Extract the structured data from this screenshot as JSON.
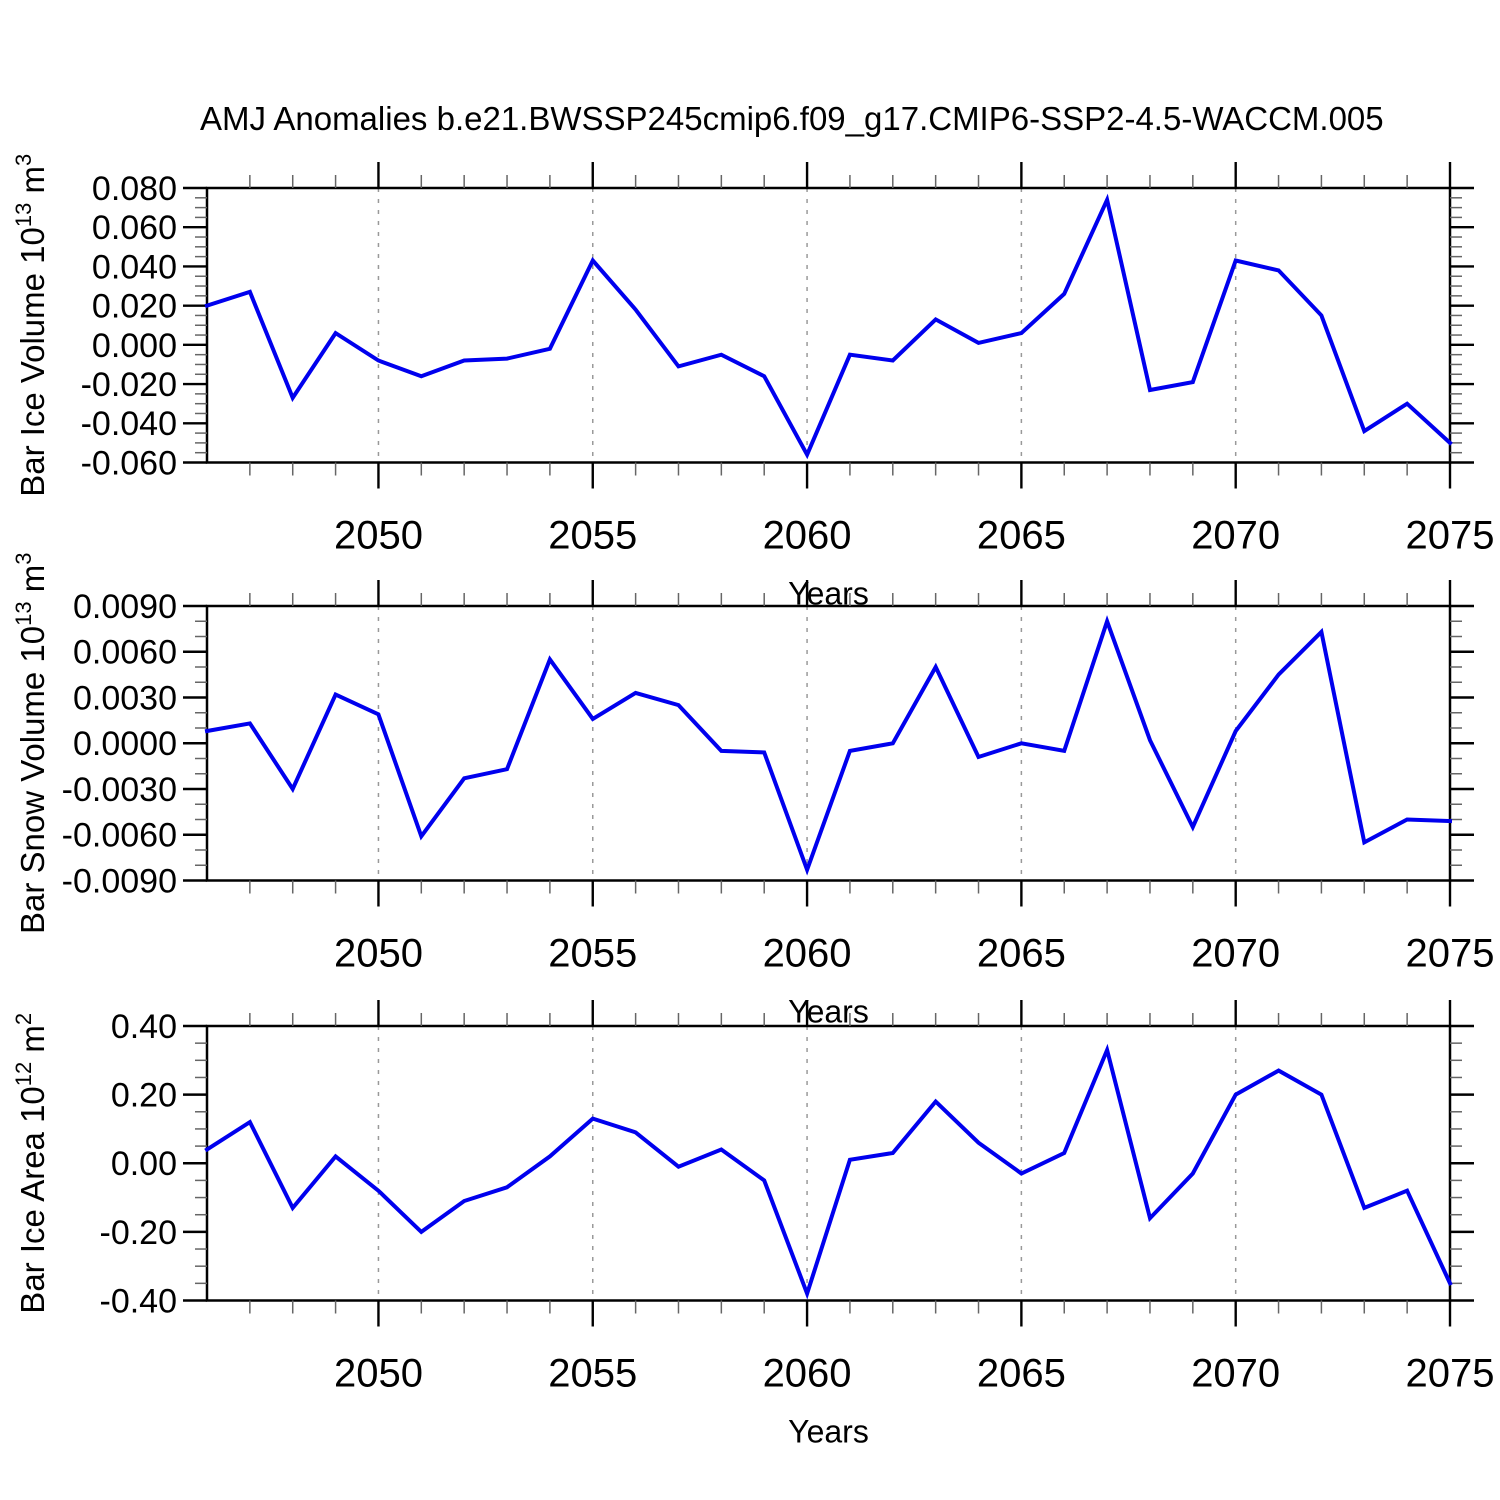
{
  "title": "AMJ Anomalies b.e21.BWSSP245cmip6.f09_g17.CMIP6-SSP2-4.5-WACCM.005",
  "chart_data": {
    "type": "line",
    "title": "AMJ Anomalies b.e21.BWSSP245cmip6.f09_g17.CMIP6-SSP2-4.5-WACCM.005",
    "xlabel": "Years",
    "x_range": [
      2046,
      2075
    ],
    "x": [
      2046,
      2047,
      2048,
      2049,
      2050,
      2051,
      2052,
      2053,
      2054,
      2055,
      2056,
      2057,
      2058,
      2059,
      2060,
      2061,
      2062,
      2063,
      2064,
      2065,
      2066,
      2067,
      2068,
      2069,
      2070,
      2071,
      2072,
      2073,
      2074,
      2075
    ],
    "x_major_ticks": [
      "2050",
      "2055",
      "2060",
      "2065",
      "2070",
      "2075"
    ],
    "x_major_tick_years": [
      2050,
      2055,
      2060,
      2065,
      2070,
      2075
    ],
    "grid_years": [
      2050,
      2055,
      2060,
      2065,
      2070
    ],
    "grid_style": "dashed",
    "line_color": "#0000ee",
    "axis_color": "#000000",
    "panels": [
      {
        "ylabel": "Bar Ice Volume 10^13 m^3",
        "ylabel_segments": [
          [
            "Bar Ice Volume 10",
            false
          ],
          [
            "13",
            true
          ],
          [
            " m",
            false
          ],
          [
            "3",
            true
          ]
        ],
        "ylim": [
          -0.06,
          0.08
        ],
        "y_major_ticks": [
          {
            "label": "0.080",
            "value": 0.08
          },
          {
            "label": "0.060",
            "value": 0.06
          },
          {
            "label": "0.040",
            "value": 0.04
          },
          {
            "label": "0.020",
            "value": 0.02
          },
          {
            "label": "0.000",
            "value": 0.0
          },
          {
            "label": "-0.020",
            "value": -0.02
          },
          {
            "label": "-0.040",
            "value": -0.04
          },
          {
            "label": "-0.060",
            "value": -0.06
          }
        ],
        "y_minor_step": 0.005,
        "xlabel": "Years",
        "series": [
          {
            "name": "Bar Ice Volume anomaly",
            "values": [
              0.02,
              0.027,
              -0.027,
              0.006,
              -0.008,
              -0.016,
              -0.008,
              -0.007,
              -0.002,
              0.043,
              0.018,
              -0.011,
              -0.005,
              -0.016,
              -0.056,
              -0.005,
              -0.008,
              0.013,
              0.001,
              0.006,
              0.026,
              0.074,
              -0.023,
              -0.019,
              0.043,
              0.038,
              0.015,
              -0.044,
              -0.03,
              -0.05
            ]
          }
        ]
      },
      {
        "ylabel": "Bar Snow Volume 10^13 m^3",
        "ylabel_segments": [
          [
            "Bar Snow Volume 10",
            false
          ],
          [
            "13",
            true
          ],
          [
            " m",
            false
          ],
          [
            "3",
            true
          ]
        ],
        "ylim": [
          -0.009,
          0.009
        ],
        "y_major_ticks": [
          {
            "label": "0.0090",
            "value": 0.009
          },
          {
            "label": "0.0060",
            "value": 0.006
          },
          {
            "label": "0.0030",
            "value": 0.003
          },
          {
            "label": "0.0000",
            "value": 0.0
          },
          {
            "label": "-0.0030",
            "value": -0.003
          },
          {
            "label": "-0.0060",
            "value": -0.006
          },
          {
            "label": "-0.0090",
            "value": -0.009
          }
        ],
        "y_minor_step": 0.001,
        "xlabel": "Years",
        "series": [
          {
            "name": "Bar Snow Volume anomaly",
            "values": [
              0.0008,
              0.0013,
              -0.003,
              0.0032,
              0.0019,
              -0.0061,
              -0.0023,
              -0.0017,
              0.0055,
              0.0016,
              0.0033,
              0.0025,
              -0.0005,
              -0.0006,
              -0.0083,
              -0.0005,
              0.0,
              0.005,
              -0.0009,
              0.0,
              -0.0005,
              0.008,
              0.0002,
              -0.0055,
              0.0008,
              0.0045,
              0.0073,
              -0.0065,
              -0.005,
              -0.0051
            ]
          }
        ]
      },
      {
        "ylabel": "Bar Ice Area 10^12 m^2",
        "ylabel_segments": [
          [
            "Bar Ice Area 10",
            false
          ],
          [
            "12",
            true
          ],
          [
            " m",
            false
          ],
          [
            "2",
            true
          ]
        ],
        "ylim": [
          -0.4,
          0.4
        ],
        "y_major_ticks": [
          {
            "label": "0.40",
            "value": 0.4
          },
          {
            "label": "0.20",
            "value": 0.2
          },
          {
            "label": "0.00",
            "value": 0.0
          },
          {
            "label": "-0.20",
            "value": -0.2
          },
          {
            "label": "-0.40",
            "value": -0.4
          }
        ],
        "y_minor_step": 0.05,
        "xlabel": "Years",
        "series": [
          {
            "name": "Bar Ice Area anomaly",
            "values": [
              0.04,
              0.12,
              -0.13,
              0.02,
              -0.08,
              -0.2,
              -0.11,
              -0.07,
              0.02,
              0.13,
              0.09,
              -0.01,
              0.04,
              -0.05,
              -0.38,
              0.01,
              0.03,
              0.18,
              0.06,
              -0.03,
              0.03,
              0.33,
              -0.16,
              -0.03,
              0.2,
              0.27,
              0.2,
              -0.13,
              -0.08,
              -0.35
            ]
          }
        ]
      }
    ]
  }
}
